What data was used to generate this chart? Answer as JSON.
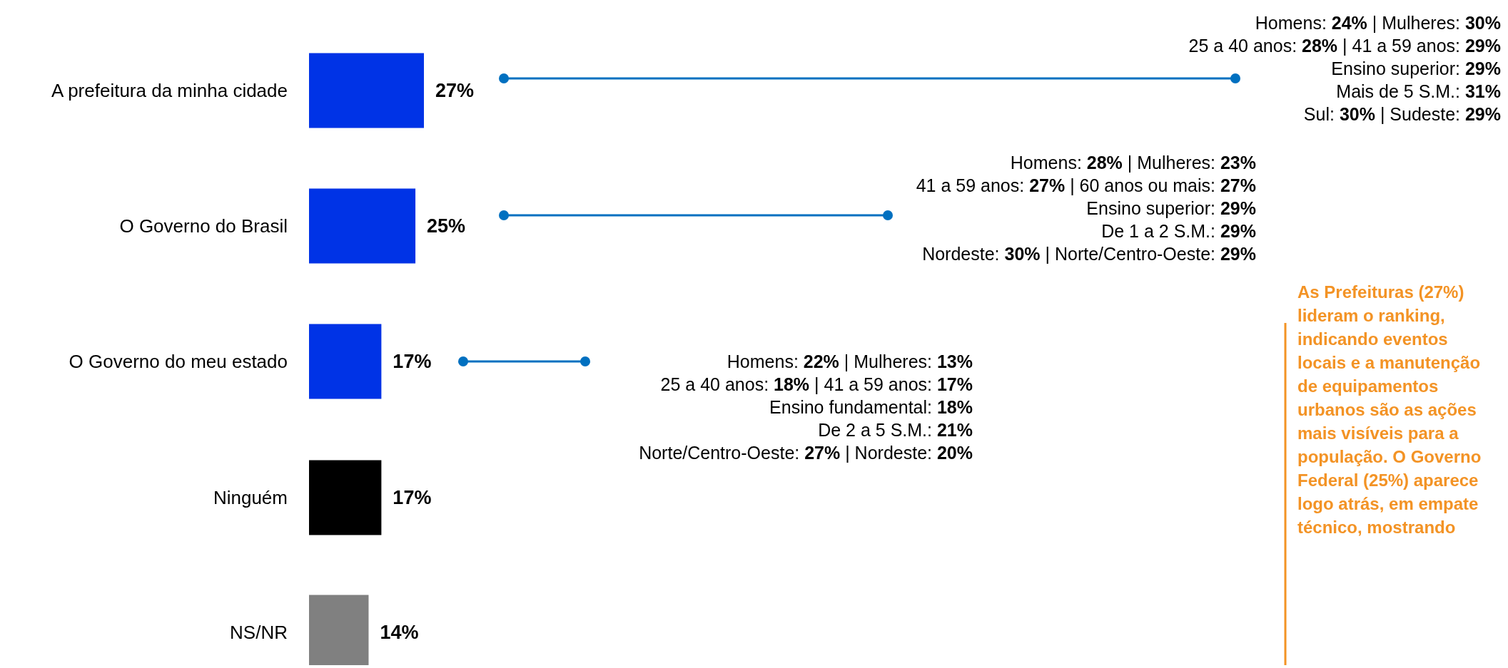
{
  "chart_data": {
    "type": "bar",
    "orientation": "horizontal",
    "categories": [
      "A prefeitura da minha cidade",
      "O Governo do Brasil",
      "O Governo do meu estado",
      "Ninguém",
      "NS/NR"
    ],
    "values": [
      27,
      25,
      17,
      17,
      14
    ],
    "colors": [
      "#0033e6",
      "#0033e6",
      "#0033e6",
      "#000000",
      "#808080"
    ],
    "value_labels": [
      "27%",
      "25%",
      "17%",
      "17%",
      "14%"
    ],
    "annotations": [
      "Homens: 24% | Mulheres: 30%",
      "25 a 40 anos: 28% | 41 a 59 anos: 29%",
      "Ensino superior: 29%",
      "Mais de 5 S.M.: 31%",
      "Sul: 30% | Sudeste: 29%",
      "Homens: 28% | Mulheres: 23%",
      "41 a 59 anos: 27% | 60 anos ou mais: 27%",
      "Ensino superior: 29%",
      "De 1 a 2 S.M.: 29%",
      "Nordeste: 30% | Norte/Centro-Oeste: 29%",
      "Homens: 22% | Mulheres: 13%",
      "25 a 40 anos: 18% | 41 a 59 anos: 17%",
      "Ensino fundamental: 18%",
      "De 2 a 5 S.M.: 21%",
      "Norte/Centro-Oeste: 27% | Nordeste: 20%",
      "As Prefeituras (27%) lideram o ranking, indicando eventos locais e a manutenção de equipamentos urbanos são as ações mais visíveis para a população. O Governo Federal (25%) aparece logo atrás, em empate técnico, mostrando"
    ]
  }
}
